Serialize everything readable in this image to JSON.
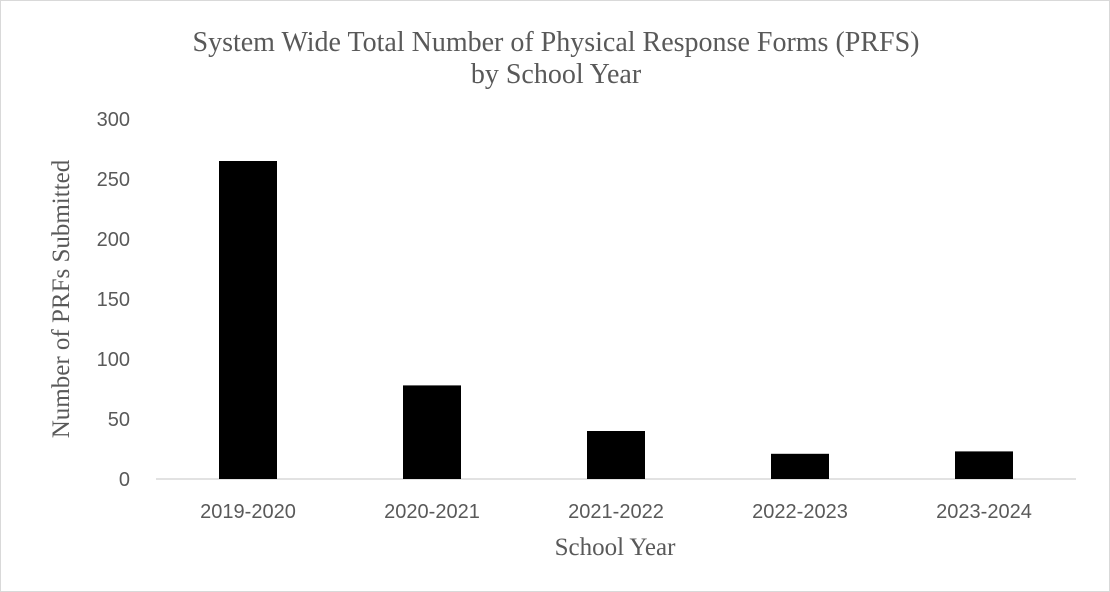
{
  "chart_data": {
    "type": "bar",
    "title": "System Wide Total Number of Physical Response Forms (PRFS)",
    "subtitle": "by School Year",
    "xlabel": "School Year",
    "ylabel": "Number of PRFs Submitted",
    "categories": [
      "2019-2020",
      "2020-2021",
      "2021-2022",
      "2022-2023",
      "2023-2024"
    ],
    "values": [
      265,
      78,
      40,
      21,
      23
    ],
    "ylim": [
      0,
      300
    ],
    "yticks": [
      "0",
      "50",
      "100",
      "150",
      "200",
      "250",
      "300"
    ],
    "grid": false,
    "legend": "none",
    "colors": {
      "bar": "#000000",
      "text": "#595959",
      "axis": "#d9d9d9"
    }
  }
}
